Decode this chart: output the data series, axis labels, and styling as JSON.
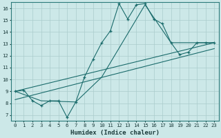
{
  "xlabel": "Humidex (Indice chaleur)",
  "background_color": "#cce8e8",
  "grid_color": "#aacccc",
  "line_color": "#1a6b6b",
  "xlim": [
    -0.5,
    23.5
  ],
  "ylim": [
    6.5,
    16.5
  ],
  "xticks": [
    0,
    1,
    2,
    3,
    4,
    5,
    6,
    7,
    8,
    9,
    10,
    11,
    12,
    13,
    14,
    15,
    16,
    17,
    18,
    19,
    20,
    21,
    22,
    23
  ],
  "yticks": [
    7,
    8,
    9,
    10,
    11,
    12,
    13,
    14,
    15,
    16
  ],
  "line1_x": [
    0,
    1,
    2,
    3,
    4,
    5,
    6,
    7,
    8,
    9,
    10,
    11,
    12,
    13,
    14,
    15,
    16,
    17,
    18,
    19,
    20,
    21,
    22,
    23
  ],
  "line1_y": [
    9.0,
    9.1,
    8.2,
    7.8,
    8.2,
    8.2,
    6.8,
    8.1,
    10.2,
    11.7,
    13.1,
    14.1,
    16.4,
    15.1,
    16.3,
    16.4,
    15.1,
    14.7,
    13.1,
    12.1,
    12.3,
    13.1,
    13.1,
    13.1
  ],
  "line2_x": [
    0,
    3,
    7,
    10,
    15,
    18,
    21,
    23
  ],
  "line2_y": [
    9.0,
    8.2,
    8.1,
    10.2,
    16.3,
    13.1,
    13.1,
    13.1
  ],
  "line3_x": [
    0,
    23
  ],
  "line3_y": [
    9.0,
    13.1
  ],
  "line4_x": [
    0,
    23
  ],
  "line4_y": [
    8.3,
    12.6
  ]
}
